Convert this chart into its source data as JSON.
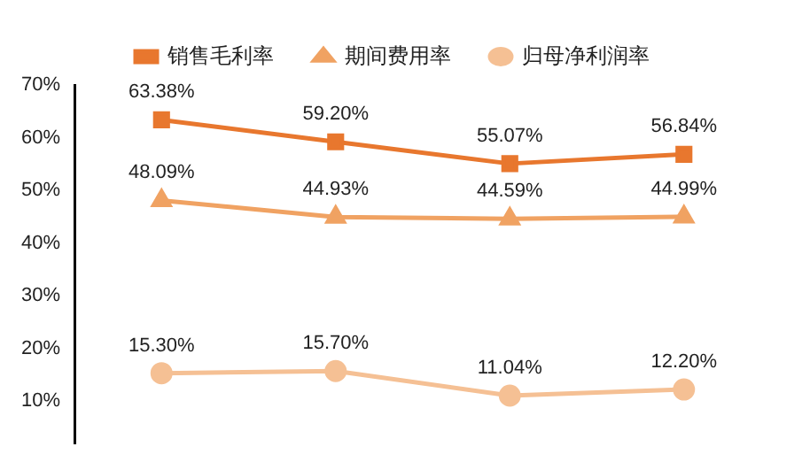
{
  "chart_data": {
    "type": "line",
    "categories": [
      null,
      null,
      null,
      null
    ],
    "ylim": [
      2,
      70
    ],
    "yticks": [
      {
        "value": 10,
        "label": "10%"
      },
      {
        "value": 20,
        "label": "20%"
      },
      {
        "value": 30,
        "label": "30%"
      },
      {
        "value": 40,
        "label": "40%"
      },
      {
        "value": 50,
        "label": "50%"
      },
      {
        "value": 60,
        "label": "60%"
      },
      {
        "value": 70,
        "label": "70%"
      }
    ],
    "grid": false,
    "legend": "top",
    "line_style": "solid",
    "series": [
      {
        "name": "销售毛利率",
        "color": "#e8772e",
        "marker": "square",
        "values": [
          63.38,
          59.2,
          55.07,
          56.84
        ],
        "value_labels": [
          "63.38%",
          "59.20%",
          "55.07%",
          "56.84%"
        ]
      },
      {
        "name": "期间费用率",
        "color": "#f0a262",
        "marker": "triangle",
        "values": [
          48.09,
          44.93,
          44.59,
          44.99
        ],
        "value_labels": [
          "48.09%",
          "44.93%",
          "44.59%",
          "44.99%"
        ]
      },
      {
        "name": "归母净利润率",
        "color": "#f5c094",
        "marker": "circle",
        "values": [
          15.3,
          15.7,
          11.04,
          12.2
        ],
        "value_labels": [
          "15.30%",
          "15.70%",
          "11.04%",
          "12.20%"
        ]
      }
    ]
  }
}
